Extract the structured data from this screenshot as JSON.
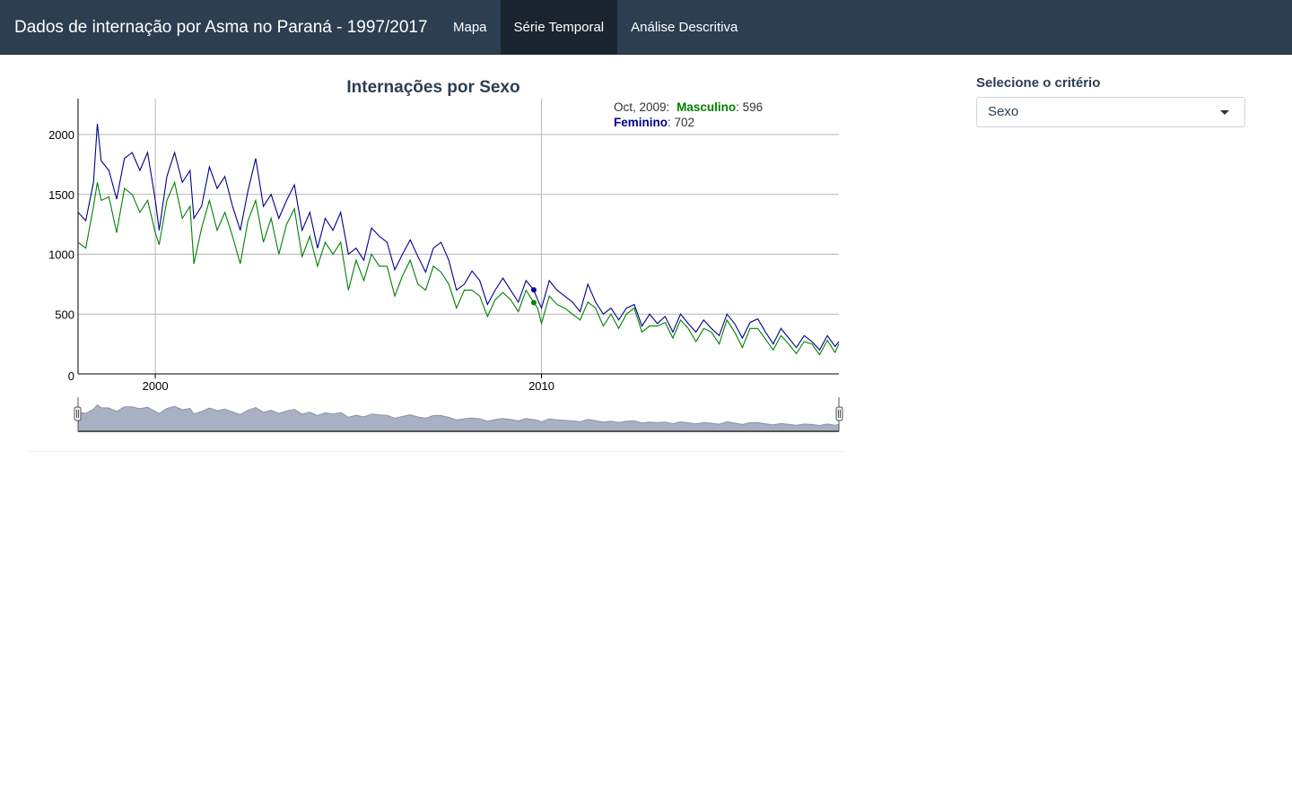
{
  "app": {
    "title": "Dados de internação por Asma no Paraná - 1997/2017",
    "nav_tabs": [
      {
        "label": "Mapa",
        "active": false
      },
      {
        "label": "Série Temporal",
        "active": true
      },
      {
        "label": "Análise Descritiva",
        "active": false
      }
    ]
  },
  "sidebar": {
    "criterion_label": "Selecione o critério",
    "criterion_value": "Sexo"
  },
  "colors": {
    "navbar": "#2c3e50",
    "active_tab": "#1a242f",
    "feminino": "#00008b",
    "masculino": "#008000"
  },
  "chart_data": {
    "type": "line",
    "title": "Internações por Sexo",
    "xlabel": "",
    "ylabel": "",
    "x_ticks": [
      "2000",
      "2010"
    ],
    "y_ticks": [
      "0",
      "500",
      "1000",
      "1500",
      "2000"
    ],
    "ylim": [
      0,
      2300
    ],
    "xlim": [
      1998.0,
      2017.7
    ],
    "grid": true,
    "x_unit": "year (decimal)",
    "series": [
      {
        "name": "Feminino",
        "color": "#00008b",
        "x": [
          1998.0,
          1998.2,
          1998.4,
          1998.5,
          1998.6,
          1998.8,
          1999.0,
          1999.2,
          1999.4,
          1999.6,
          1999.8,
          2000.0,
          2000.1,
          2000.3,
          2000.5,
          2000.7,
          2000.9,
          2001.0,
          2001.2,
          2001.4,
          2001.6,
          2001.8,
          2002.0,
          2002.2,
          2002.4,
          2002.6,
          2002.8,
          2003.0,
          2003.2,
          2003.4,
          2003.6,
          2003.8,
          2004.0,
          2004.2,
          2004.4,
          2004.6,
          2004.8,
          2005.0,
          2005.2,
          2005.4,
          2005.6,
          2005.8,
          2006.0,
          2006.2,
          2006.4,
          2006.6,
          2006.8,
          2007.0,
          2007.2,
          2007.4,
          2007.6,
          2007.8,
          2008.0,
          2008.2,
          2008.4,
          2008.6,
          2008.8,
          2009.0,
          2009.2,
          2009.4,
          2009.6,
          2009.8,
          2009.9,
          2010.0,
          2010.2,
          2010.4,
          2010.6,
          2010.8,
          2011.0,
          2011.2,
          2011.4,
          2011.6,
          2011.8,
          2012.0,
          2012.2,
          2012.4,
          2012.6,
          2012.8,
          2013.0,
          2013.2,
          2013.4,
          2013.6,
          2013.8,
          2014.0,
          2014.2,
          2014.4,
          2014.6,
          2014.8,
          2015.0,
          2015.2,
          2015.4,
          2015.6,
          2015.8,
          2016.0,
          2016.2,
          2016.4,
          2016.6,
          2016.8,
          2017.0,
          2017.2,
          2017.4,
          2017.6,
          2017.7
        ],
        "y": [
          1350,
          1280,
          1600,
          2090,
          1780,
          1700,
          1460,
          1800,
          1850,
          1700,
          1850,
          1450,
          1200,
          1650,
          1850,
          1600,
          1700,
          1300,
          1400,
          1730,
          1550,
          1650,
          1400,
          1200,
          1530,
          1800,
          1400,
          1500,
          1300,
          1450,
          1580,
          1200,
          1350,
          1050,
          1300,
          1200,
          1350,
          1000,
          1050,
          950,
          1220,
          1150,
          1100,
          870,
          1000,
          1120,
          980,
          850,
          1050,
          1100,
          950,
          700,
          750,
          860,
          780,
          580,
          700,
          800,
          700,
          600,
          780,
          702,
          620,
          550,
          780,
          700,
          650,
          600,
          520,
          750,
          600,
          500,
          550,
          450,
          550,
          580,
          400,
          500,
          420,
          480,
          350,
          500,
          420,
          350,
          450,
          380,
          320,
          500,
          420,
          300,
          430,
          460,
          350,
          250,
          380,
          300,
          220,
          320,
          270,
          200,
          320,
          230,
          270
        ],
        "highlight": {
          "x": 2009.8,
          "y": 702
        }
      },
      {
        "name": "Masculino",
        "color": "#008000",
        "x": [
          1998.0,
          1998.2,
          1998.4,
          1998.5,
          1998.6,
          1998.8,
          1999.0,
          1999.2,
          1999.4,
          1999.6,
          1999.8,
          2000.0,
          2000.1,
          2000.3,
          2000.5,
          2000.7,
          2000.9,
          2001.0,
          2001.2,
          2001.4,
          2001.6,
          2001.8,
          2002.0,
          2002.2,
          2002.4,
          2002.6,
          2002.8,
          2003.0,
          2003.2,
          2003.4,
          2003.6,
          2003.8,
          2004.0,
          2004.2,
          2004.4,
          2004.6,
          2004.8,
          2005.0,
          2005.2,
          2005.4,
          2005.6,
          2005.8,
          2006.0,
          2006.2,
          2006.4,
          2006.6,
          2006.8,
          2007.0,
          2007.2,
          2007.4,
          2007.6,
          2007.8,
          2008.0,
          2008.2,
          2008.4,
          2008.6,
          2008.8,
          2009.0,
          2009.2,
          2009.4,
          2009.6,
          2009.8,
          2009.9,
          2010.0,
          2010.2,
          2010.4,
          2010.6,
          2010.8,
          2011.0,
          2011.2,
          2011.4,
          2011.6,
          2011.8,
          2012.0,
          2012.2,
          2012.4,
          2012.6,
          2012.8,
          2013.0,
          2013.2,
          2013.4,
          2013.6,
          2013.8,
          2014.0,
          2014.2,
          2014.4,
          2014.6,
          2014.8,
          2015.0,
          2015.2,
          2015.4,
          2015.6,
          2015.8,
          2016.0,
          2016.2,
          2016.4,
          2016.6,
          2016.8,
          2017.0,
          2017.2,
          2017.4,
          2017.6,
          2017.7
        ],
        "y": [
          1100,
          1050,
          1400,
          1600,
          1450,
          1480,
          1180,
          1550,
          1500,
          1350,
          1450,
          1180,
          1080,
          1450,
          1600,
          1300,
          1400,
          920,
          1220,
          1450,
          1200,
          1350,
          1150,
          920,
          1280,
          1450,
          1100,
          1300,
          1000,
          1250,
          1380,
          980,
          1150,
          900,
          1100,
          1000,
          1100,
          700,
          950,
          780,
          1000,
          900,
          900,
          650,
          820,
          950,
          750,
          700,
          900,
          850,
          750,
          550,
          700,
          700,
          650,
          480,
          620,
          680,
          620,
          520,
          700,
          596,
          550,
          420,
          650,
          580,
          550,
          500,
          450,
          600,
          550,
          400,
          500,
          380,
          500,
          550,
          350,
          400,
          400,
          430,
          300,
          450,
          380,
          270,
          380,
          350,
          250,
          450,
          350,
          220,
          380,
          380,
          290,
          200,
          320,
          250,
          170,
          270,
          250,
          160,
          280,
          180,
          250
        ],
        "highlight": {
          "x": 2009.8,
          "y": 596
        }
      }
    ],
    "hover_legend": {
      "label": "Oct, 2009:",
      "entries": [
        {
          "name": "Masculino",
          "value_text": "596"
        },
        {
          "name": "Feminino",
          "value_text": "702"
        }
      ]
    }
  }
}
